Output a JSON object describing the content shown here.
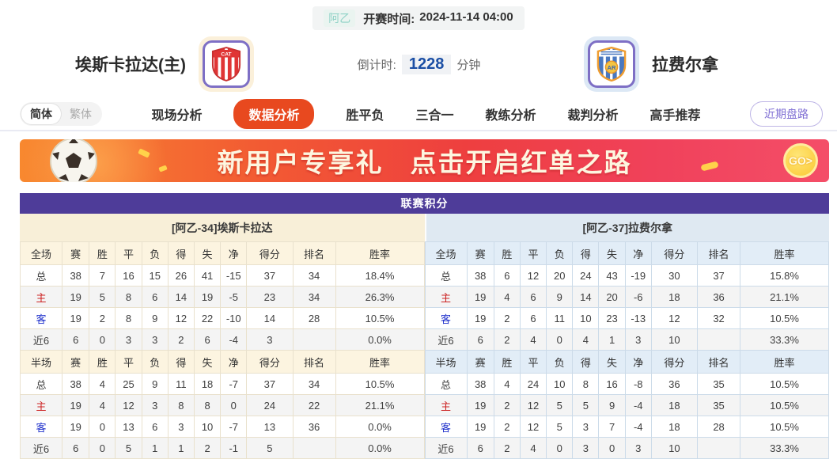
{
  "match_header": {
    "league_tag": "阿乙",
    "start_time_label": "开赛时间:",
    "start_time_value": "2024-11-14 04:00",
    "home_team_name": "埃斯卡拉达(主)",
    "home_badge_text": "CAT",
    "away_team_name": "拉费尔拿",
    "countdown_label": "倒计时:",
    "countdown_value": "1228",
    "countdown_unit": "分钟"
  },
  "nav": {
    "lang": {
      "simplified": "简体",
      "traditional": "繁体"
    },
    "items": [
      {
        "label": "现场分析",
        "active": false
      },
      {
        "label": "数据分析",
        "active": true
      },
      {
        "label": "胜平负",
        "active": false
      },
      {
        "label": "三合一",
        "active": false
      },
      {
        "label": "教练分析",
        "active": false
      },
      {
        "label": "裁判分析",
        "active": false
      },
      {
        "label": "高手推荐",
        "active": false
      }
    ],
    "recent_odds_button": "近期盘路"
  },
  "banner": {
    "headline_left": "新用户专享礼",
    "headline_right": "点击开启红单之路",
    "go_label": "GO>"
  },
  "standings": {
    "title": "联赛积分",
    "home": {
      "subtitle": "[阿乙-34]埃斯卡拉达",
      "sections": [
        {
          "header": [
            "全场",
            "赛",
            "胜",
            "平",
            "负",
            "得",
            "失",
            "净",
            "得分",
            "排名",
            "胜率"
          ],
          "rows": [
            {
              "label": "总",
              "cells": [
                "38",
                "7",
                "16",
                "15",
                "26",
                "41",
                "-15",
                "37",
                "34",
                "18.4%"
              ]
            },
            {
              "label": "主",
              "cells": [
                "19",
                "5",
                "8",
                "6",
                "14",
                "19",
                "-5",
                "23",
                "34",
                "26.3%"
              ]
            },
            {
              "label": "客",
              "cells": [
                "19",
                "2",
                "8",
                "9",
                "12",
                "22",
                "-10",
                "14",
                "28",
                "10.5%"
              ]
            },
            {
              "label": "近6",
              "cells": [
                "6",
                "0",
                "3",
                "3",
                "2",
                "6",
                "-4",
                "3",
                "",
                "0.0%"
              ]
            }
          ]
        },
        {
          "header": [
            "半场",
            "赛",
            "胜",
            "平",
            "负",
            "得",
            "失",
            "净",
            "得分",
            "排名",
            "胜率"
          ],
          "rows": [
            {
              "label": "总",
              "cells": [
                "38",
                "4",
                "25",
                "9",
                "11",
                "18",
                "-7",
                "37",
                "34",
                "10.5%"
              ]
            },
            {
              "label": "主",
              "cells": [
                "19",
                "4",
                "12",
                "3",
                "8",
                "8",
                "0",
                "24",
                "22",
                "21.1%"
              ]
            },
            {
              "label": "客",
              "cells": [
                "19",
                "0",
                "13",
                "6",
                "3",
                "10",
                "-7",
                "13",
                "36",
                "0.0%"
              ]
            },
            {
              "label": "近6",
              "cells": [
                "6",
                "0",
                "5",
                "1",
                "1",
                "2",
                "-1",
                "5",
                "",
                "0.0%"
              ]
            }
          ]
        }
      ]
    },
    "away": {
      "subtitle": "[阿乙-37]拉费尔拿",
      "sections": [
        {
          "header": [
            "全场",
            "赛",
            "胜",
            "平",
            "负",
            "得",
            "失",
            "净",
            "得分",
            "排名",
            "胜率"
          ],
          "rows": [
            {
              "label": "总",
              "cells": [
                "38",
                "6",
                "12",
                "20",
                "24",
                "43",
                "-19",
                "30",
                "37",
                "15.8%"
              ]
            },
            {
              "label": "主",
              "cells": [
                "19",
                "4",
                "6",
                "9",
                "14",
                "20",
                "-6",
                "18",
                "36",
                "21.1%"
              ]
            },
            {
              "label": "客",
              "cells": [
                "19",
                "2",
                "6",
                "11",
                "10",
                "23",
                "-13",
                "12",
                "32",
                "10.5%"
              ]
            },
            {
              "label": "近6",
              "cells": [
                "6",
                "2",
                "4",
                "0",
                "4",
                "1",
                "3",
                "10",
                "",
                "33.3%"
              ]
            }
          ]
        },
        {
          "header": [
            "半场",
            "赛",
            "胜",
            "平",
            "负",
            "得",
            "失",
            "净",
            "得分",
            "排名",
            "胜率"
          ],
          "rows": [
            {
              "label": "总",
              "cells": [
                "38",
                "4",
                "24",
                "10",
                "8",
                "16",
                "-8",
                "36",
                "35",
                "10.5%"
              ]
            },
            {
              "label": "主",
              "cells": [
                "19",
                "2",
                "12",
                "5",
                "5",
                "9",
                "-4",
                "18",
                "35",
                "10.5%"
              ]
            },
            {
              "label": "客",
              "cells": [
                "19",
                "2",
                "12",
                "5",
                "3",
                "7",
                "-4",
                "18",
                "28",
                "10.5%"
              ]
            },
            {
              "label": "近6",
              "cells": [
                "6",
                "2",
                "4",
                "0",
                "3",
                "0",
                "3",
                "10",
                "",
                "33.3%"
              ]
            }
          ]
        }
      ]
    }
  },
  "colors": {
    "title_bar_purple": "#4e3c99",
    "nav_active_orange": "#e8491f",
    "home_subhead_bg": "#f8efd8",
    "away_subhead_bg": "#dfe9f2",
    "home_row_label_red": "#cc2222",
    "away_row_label_blue": "#2233cc",
    "countdown_value_blue": "#1b4fa5",
    "league_tag_teal": "#8fd2c6",
    "banner_gradient_start": "#f8882f",
    "banner_gradient_end": "#f44e68",
    "go_coin_yellow": "#fbc832"
  }
}
